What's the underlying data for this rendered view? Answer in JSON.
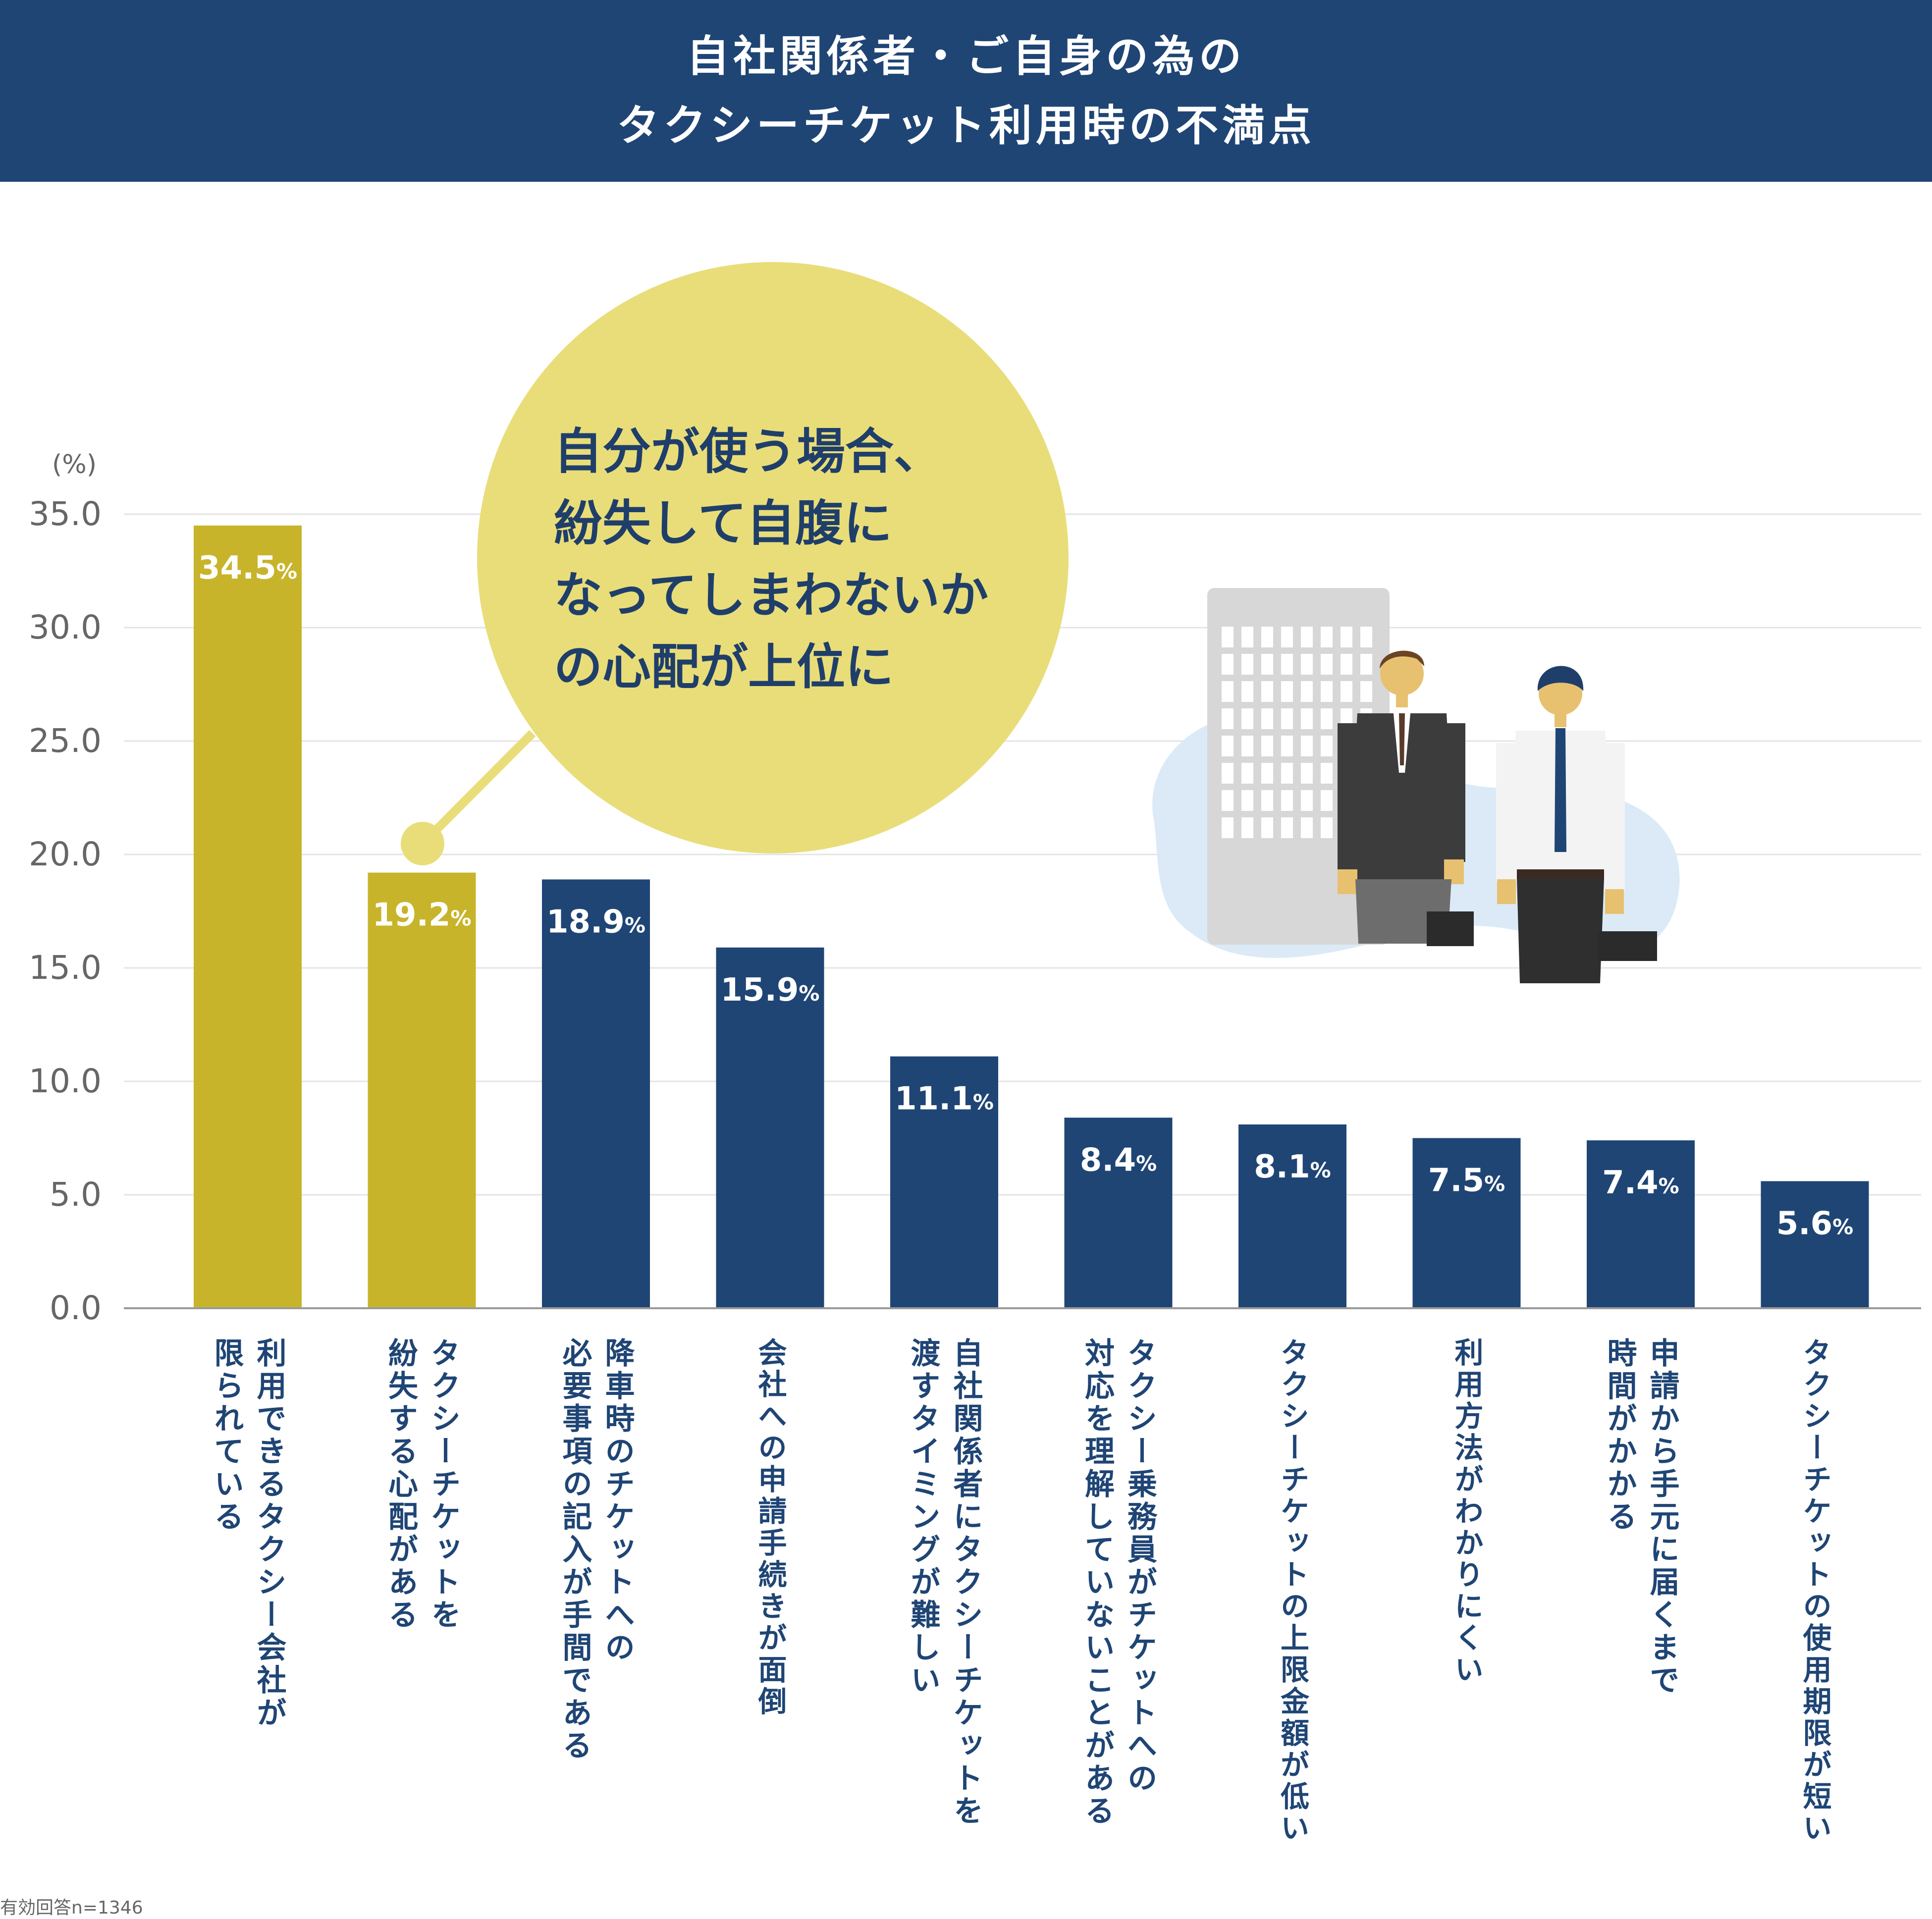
{
  "header": {
    "title_line1": "自社関係者・ご自身の為の",
    "title_line2": "タクシーチケット利用時の不満点"
  },
  "callout": {
    "lines": [
      "自分が使う場合、",
      "紛失して自腹に",
      "なってしまわないか",
      "の心配が上位に"
    ]
  },
  "note": "有効回答n=1346",
  "colors": {
    "header_bg": "#1f4575",
    "highlight_bar": "#c8b42a",
    "bar": "#1f4575",
    "callout": "#e9dd79",
    "label_text": "#1f4575",
    "grid": "#e4e4e4",
    "axis_text": "#666666"
  },
  "chart_data": {
    "type": "bar",
    "ylabel": "(%)",
    "ylim": [
      0,
      35
    ],
    "yticks": [
      "0.0",
      "5.0",
      "10.0",
      "15.0",
      "20.0",
      "25.0",
      "30.0",
      "35.0"
    ],
    "value_unit": "%",
    "grid": true,
    "highlight_count": 2,
    "categories": [
      [
        "利用できるタクシー会社が",
        "限られている"
      ],
      [
        "タクシーチケットを",
        "紛失する心配がある"
      ],
      [
        "降車時のチケットへの",
        "必要事項の記入が手間である"
      ],
      [
        "会社への申請手続きが面倒"
      ],
      [
        "自社関係者にタクシーチケットを",
        "渡すタイミングが難しい"
      ],
      [
        "タクシー乗務員がチケットへの",
        "対応を理解していないことがある"
      ],
      [
        "タクシーチケットの上限金額が低い"
      ],
      [
        "利用方法がわかりにくい"
      ],
      [
        "申請から手元に届くまで",
        "時間がかかる"
      ],
      [
        "タクシーチケットの使用期限が短い"
      ]
    ],
    "values": [
      34.5,
      19.2,
      18.9,
      15.9,
      11.1,
      8.4,
      8.1,
      7.5,
      7.4,
      5.6
    ],
    "value_labels": [
      "34.5",
      "19.2",
      "18.9",
      "15.9",
      "11.1",
      "8.4",
      "8.1",
      "7.5",
      "7.4",
      "5.6"
    ]
  }
}
